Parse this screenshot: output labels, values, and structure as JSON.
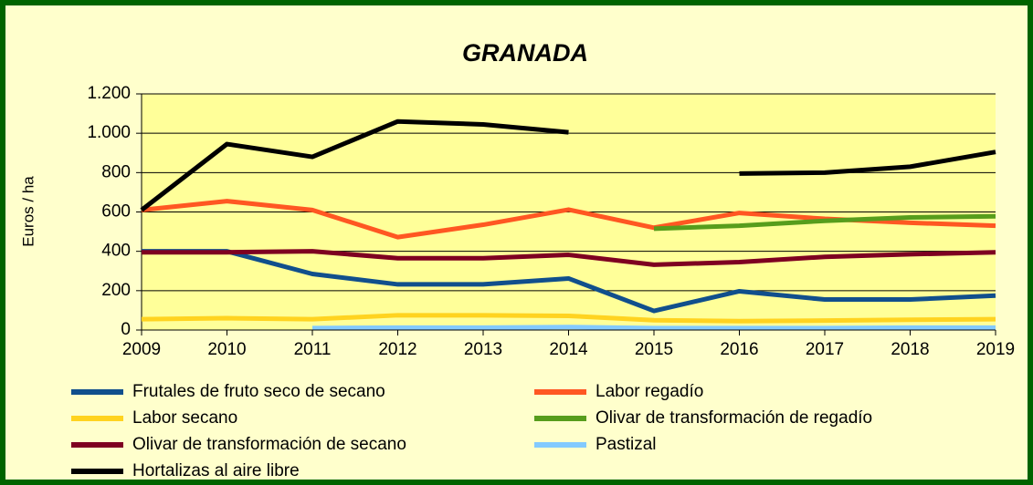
{
  "chart_data": {
    "type": "line",
    "title": "GRANADA",
    "y_label": "Euros / ha",
    "x": [
      2009,
      2010,
      2011,
      2012,
      2013,
      2014,
      2015,
      2016,
      2017,
      2018,
      2019
    ],
    "xlim": [
      2009,
      2019
    ],
    "xticks": [
      2009,
      2010,
      2011,
      2012,
      2013,
      2014,
      2015,
      2016,
      2017,
      2018,
      2019
    ],
    "ylim": [
      0,
      1200
    ],
    "yticks": [
      0,
      200,
      400,
      600,
      800,
      {
        "value": 1000,
        "label": "1.000"
      },
      {
        "value": 1200,
        "label": "1.200"
      }
    ],
    "grid": true,
    "series": [
      {
        "name": "Frutales de fruto seco de secano",
        "color": "#114f8c",
        "values": [
          400,
          400,
          285,
          232,
          232,
          262,
          97,
          197,
          155,
          155,
          175
        ]
      },
      {
        "name": "Labor regadío",
        "color": "#ff5722",
        "values": [
          610,
          655,
          610,
          472,
          535,
          612,
          520,
          595,
          565,
          545,
          530
        ]
      },
      {
        "name": "Labor secano",
        "color": "#ffd320",
        "values": [
          55,
          60,
          55,
          75,
          75,
          72,
          50,
          45,
          48,
          52,
          55
        ]
      },
      {
        "name": "Olivar de transformación de regadío",
        "color": "#579d1c",
        "values": [
          null,
          null,
          null,
          null,
          null,
          null,
          515,
          530,
          555,
          572,
          578
        ]
      },
      {
        "name": "Olivar de transformación de secano",
        "color": "#7e0021",
        "values": [
          395,
          395,
          400,
          365,
          365,
          382,
          332,
          345,
          372,
          385,
          395
        ]
      },
      {
        "name": "Pastizal",
        "color": "#83caff",
        "values": [
          null,
          null,
          10,
          12,
          12,
          15,
          10,
          10,
          10,
          12,
          12
        ]
      },
      {
        "name": "Hortalizas al aire libre",
        "color": "#000000",
        "values": [
          610,
          945,
          880,
          1060,
          1045,
          1005,
          null,
          795,
          800,
          830,
          905
        ]
      }
    ]
  }
}
